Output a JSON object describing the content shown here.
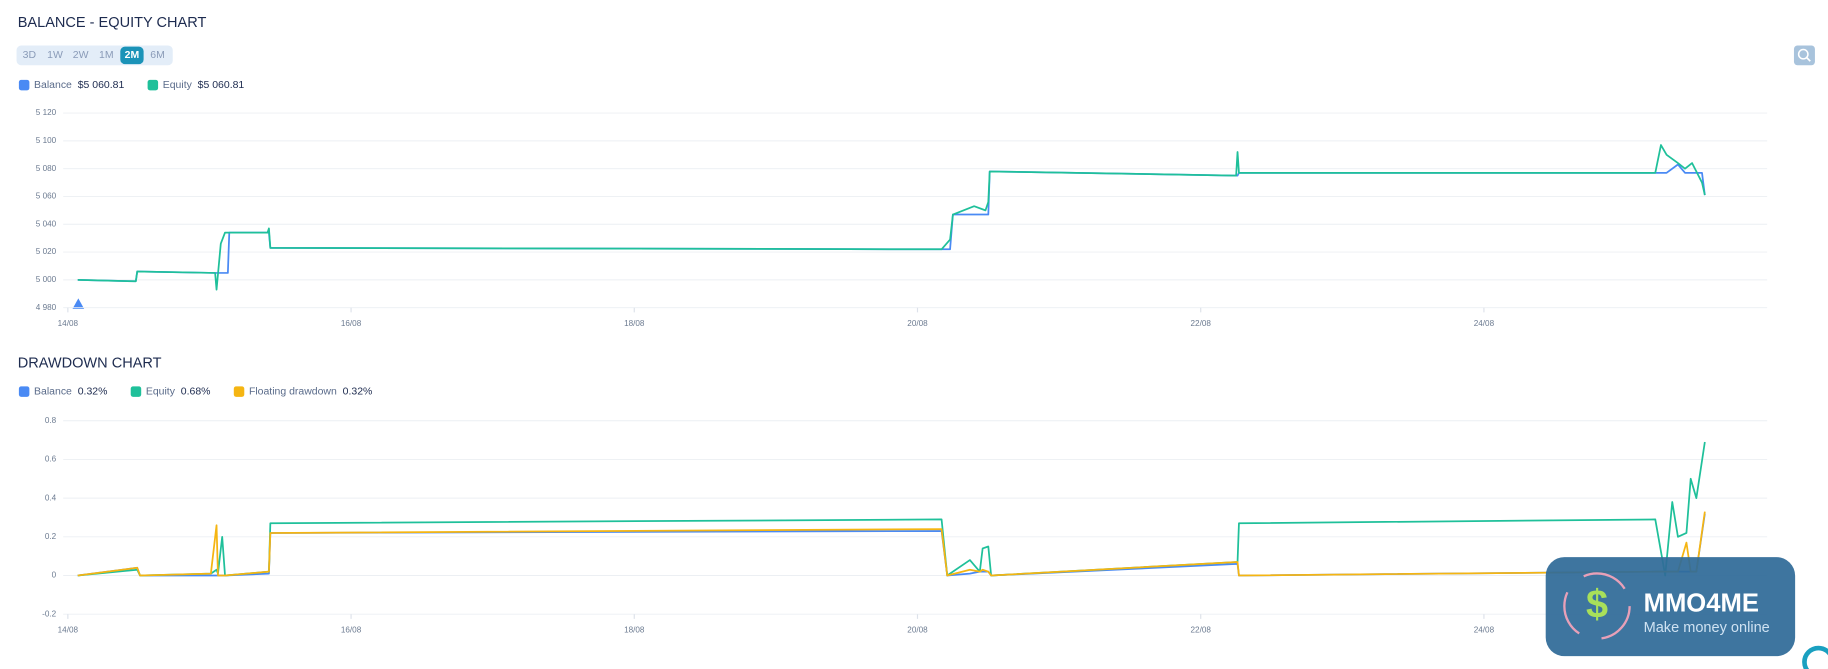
{
  "controls": {
    "periods": [
      "3D",
      "1W",
      "2W",
      "1M",
      "2M",
      "6M"
    ],
    "active_period": 4
  },
  "watermark": {
    "brand": "MMO4ME",
    "tagline": "Make money online"
  },
  "chart_data": [
    {
      "type": "line",
      "title": "BALANCE - EQUITY CHART",
      "x": [
        14.07,
        14.48,
        14.49,
        15.04,
        15.05,
        15.08,
        15.11,
        15.13,
        15.14,
        15.41,
        15.42,
        15.43,
        20.17,
        20.23,
        20.25,
        20.4,
        20.48,
        20.5,
        20.51,
        22.25,
        22.26,
        22.27,
        25.21,
        25.25,
        25.29,
        25.37,
        25.42,
        25.47,
        25.54,
        25.56
      ],
      "series": [
        {
          "name": "Balance",
          "color": "#4a8af4",
          "current_label": "$5 060.81",
          "values": [
            5000,
            4999,
            5006,
            5005,
            5005,
            5005,
            5005,
            5005,
            5034,
            5034,
            5034,
            5023,
            5022,
            5022,
            5047,
            5047,
            5047,
            5047,
            5078,
            5075,
            5075,
            5077,
            5077,
            5077,
            5077,
            5083,
            5077,
            5077,
            5077,
            5061
          ]
        },
        {
          "name": "Equity",
          "color": "#1fc09a",
          "current_label": "$5 060.81",
          "values": [
            5000,
            4999,
            5006,
            5005,
            4993,
            5026,
            5034,
            5034,
            5034,
            5034,
            5037,
            5023,
            5022,
            5029,
            5047,
            5053,
            5050,
            5056,
            5078,
            5075,
            5092,
            5077,
            5077,
            5097,
            5090,
            5084,
            5080,
            5084,
            5070,
            5061
          ]
        }
      ],
      "xlim": [
        14,
        26
      ],
      "xticks": [
        {
          "value": 14,
          "label": "14/08"
        },
        {
          "value": 16,
          "label": "16/08"
        },
        {
          "value": 18,
          "label": "18/08"
        },
        {
          "value": 20,
          "label": "20/08"
        },
        {
          "value": 22,
          "label": "22/08"
        },
        {
          "value": 24,
          "label": "24/08"
        }
      ],
      "ylim": [
        4980,
        5120
      ],
      "yticks": [
        {
          "value": 5120,
          "label": "5 120"
        },
        {
          "value": 5100,
          "label": "5 100"
        },
        {
          "value": 5080,
          "label": "5 080"
        },
        {
          "value": 5060,
          "label": "5 060"
        },
        {
          "value": 5040,
          "label": "5 040"
        },
        {
          "value": 5020,
          "label": "5 020"
        },
        {
          "value": 5000,
          "label": "5 000"
        },
        {
          "value": 4980,
          "label": "4 980"
        }
      ],
      "grid": true
    },
    {
      "type": "line",
      "title": "DRAWDOWN CHART",
      "x": [
        14.07,
        14.49,
        14.51,
        15.01,
        15.05,
        15.06,
        15.09,
        15.11,
        15.42,
        15.43,
        20.17,
        20.21,
        20.37,
        20.44,
        20.46,
        20.5,
        20.52,
        22.26,
        22.27,
        25.21,
        25.28,
        25.33,
        25.37,
        25.43,
        25.46,
        25.5,
        25.56
      ],
      "series": [
        {
          "name": "Balance",
          "color": "#4a8af4",
          "current_label": "0.32%",
          "values": [
            0,
            0.04,
            0,
            0,
            0,
            0,
            0,
            0,
            0.01,
            0.22,
            0.23,
            0,
            0.01,
            0.02,
            0.02,
            0.02,
            0,
            0.06,
            0,
            0.02,
            0.02,
            0.02,
            0.02,
            0.02,
            0.02,
            0.02,
            0.32
          ]
        },
        {
          "name": "Equity",
          "color": "#1fc09a",
          "current_label": "0.68%",
          "values": [
            0,
            0.03,
            0,
            0.01,
            0.03,
            0.01,
            0.2,
            0,
            0.02,
            0.27,
            0.29,
            0,
            0.08,
            0.02,
            0.14,
            0.15,
            0,
            0.07,
            0.27,
            0.29,
            0,
            0.38,
            0.2,
            0.22,
            0.5,
            0.4,
            0.69
          ]
        },
        {
          "name": "Floating drawdown",
          "color": "#f5b512",
          "current_label": "0.32%",
          "values": [
            0,
            0.04,
            0,
            0.01,
            0.26,
            0,
            0,
            0,
            0.02,
            0.22,
            0.24,
            0,
            0.03,
            0.02,
            0.03,
            0.02,
            0,
            0.07,
            0,
            0.02,
            0.02,
            0.02,
            0.02,
            0.17,
            0.02,
            0.02,
            0.33
          ]
        }
      ],
      "xlim": [
        14,
        26
      ],
      "xticks": [
        {
          "value": 14,
          "label": "14/08"
        },
        {
          "value": 16,
          "label": "16/08"
        },
        {
          "value": 18,
          "label": "18/08"
        },
        {
          "value": 20,
          "label": "20/08"
        },
        {
          "value": 22,
          "label": "22/08"
        },
        {
          "value": 24,
          "label": "24/08"
        }
      ],
      "ylim": [
        -0.2,
        0.8
      ],
      "yticks": [
        0.8,
        0.6,
        0.4,
        0.2,
        0,
        -0.2
      ],
      "grid": true
    }
  ]
}
